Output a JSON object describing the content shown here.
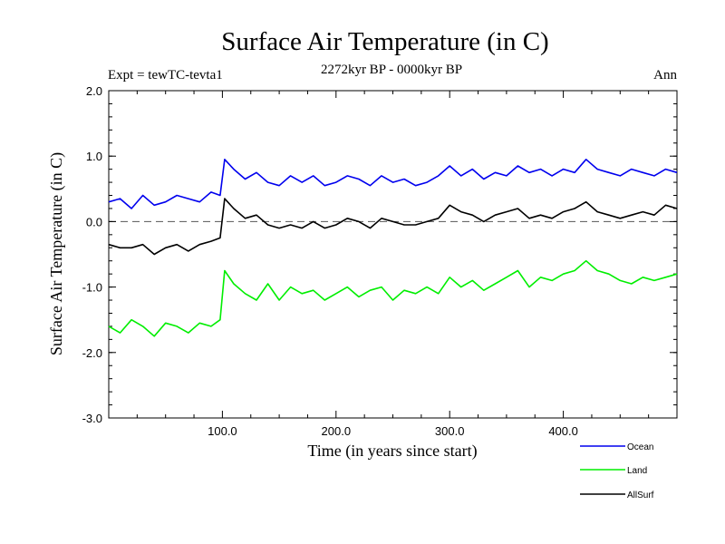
{
  "chart_data": {
    "type": "line",
    "title": "Surface Air Temperature (in C)",
    "left_subtitle": "Expt = tewTC-tevta1",
    "center_subtitle": "2272kyr BP - 0000kyr BP",
    "right_subtitle": "Ann",
    "xlabel": "Time (in years since start)",
    "ylabel": "Surface Air Temperature (in C)",
    "xlim": [
      0,
      500
    ],
    "ylim": [
      -3.0,
      2.0
    ],
    "x_ticks": [
      {
        "value": 100,
        "label": "100.0"
      },
      {
        "value": 200,
        "label": "200.0"
      },
      {
        "value": 300,
        "label": "300.0"
      },
      {
        "value": 400,
        "label": "400.0"
      }
    ],
    "y_ticks": [
      {
        "value": 2.0,
        "label": "2.0"
      },
      {
        "value": 1.0,
        "label": "1.0"
      },
      {
        "value": 0.0,
        "label": "0.0"
      },
      {
        "value": -1.0,
        "label": "-1.0"
      },
      {
        "value": -2.0,
        "label": "-2.0"
      },
      {
        "value": -3.0,
        "label": "-3.0"
      }
    ],
    "zero_line": 0.0,
    "legend_position": "bottom-right",
    "series_x": [
      0,
      10,
      20,
      30,
      40,
      50,
      60,
      70,
      80,
      90,
      98,
      102,
      110,
      120,
      130,
      140,
      150,
      160,
      170,
      180,
      190,
      200,
      210,
      220,
      230,
      240,
      250,
      260,
      270,
      280,
      290,
      300,
      310,
      320,
      330,
      340,
      350,
      360,
      370,
      380,
      390,
      400,
      410,
      420,
      430,
      440,
      450,
      460,
      470,
      480,
      490,
      500
    ],
    "series": [
      {
        "name": "Ocean",
        "color": "#0000ee",
        "values": [
          0.3,
          0.35,
          0.2,
          0.4,
          0.25,
          0.3,
          0.4,
          0.35,
          0.3,
          0.45,
          0.4,
          0.95,
          0.8,
          0.65,
          0.75,
          0.6,
          0.55,
          0.7,
          0.6,
          0.7,
          0.55,
          0.6,
          0.7,
          0.65,
          0.55,
          0.7,
          0.6,
          0.65,
          0.55,
          0.6,
          0.7,
          0.85,
          0.7,
          0.8,
          0.65,
          0.75,
          0.7,
          0.85,
          0.75,
          0.8,
          0.7,
          0.8,
          0.75,
          0.95,
          0.8,
          0.75,
          0.7,
          0.8,
          0.75,
          0.7,
          0.8,
          0.75
        ]
      },
      {
        "name": "Land",
        "color": "#00ee00",
        "values": [
          -1.6,
          -1.7,
          -1.5,
          -1.6,
          -1.75,
          -1.55,
          -1.6,
          -1.7,
          -1.55,
          -1.6,
          -1.5,
          -0.75,
          -0.95,
          -1.1,
          -1.2,
          -0.95,
          -1.2,
          -1.0,
          -1.1,
          -1.05,
          -1.2,
          -1.1,
          -1.0,
          -1.15,
          -1.05,
          -1.0,
          -1.2,
          -1.05,
          -1.1,
          -1.0,
          -1.1,
          -0.85,
          -1.0,
          -0.9,
          -1.05,
          -0.95,
          -0.85,
          -0.75,
          -1.0,
          -0.85,
          -0.9,
          -0.8,
          -0.75,
          -0.6,
          -0.75,
          -0.8,
          -0.9,
          -0.95,
          -0.85,
          -0.9,
          -0.85,
          -0.8
        ]
      },
      {
        "name": "AllSurf",
        "color": "#000000",
        "values": [
          -0.35,
          -0.4,
          -0.4,
          -0.35,
          -0.5,
          -0.4,
          -0.35,
          -0.45,
          -0.35,
          -0.3,
          -0.25,
          0.35,
          0.2,
          0.05,
          0.1,
          -0.05,
          -0.1,
          -0.05,
          -0.1,
          0.0,
          -0.1,
          -0.05,
          0.05,
          0.0,
          -0.1,
          0.05,
          0.0,
          -0.05,
          -0.05,
          0.0,
          0.05,
          0.25,
          0.15,
          0.1,
          0.0,
          0.1,
          0.15,
          0.2,
          0.05,
          0.1,
          0.05,
          0.15,
          0.2,
          0.3,
          0.15,
          0.1,
          0.05,
          0.1,
          0.15,
          0.1,
          0.25,
          0.2
        ]
      }
    ]
  }
}
